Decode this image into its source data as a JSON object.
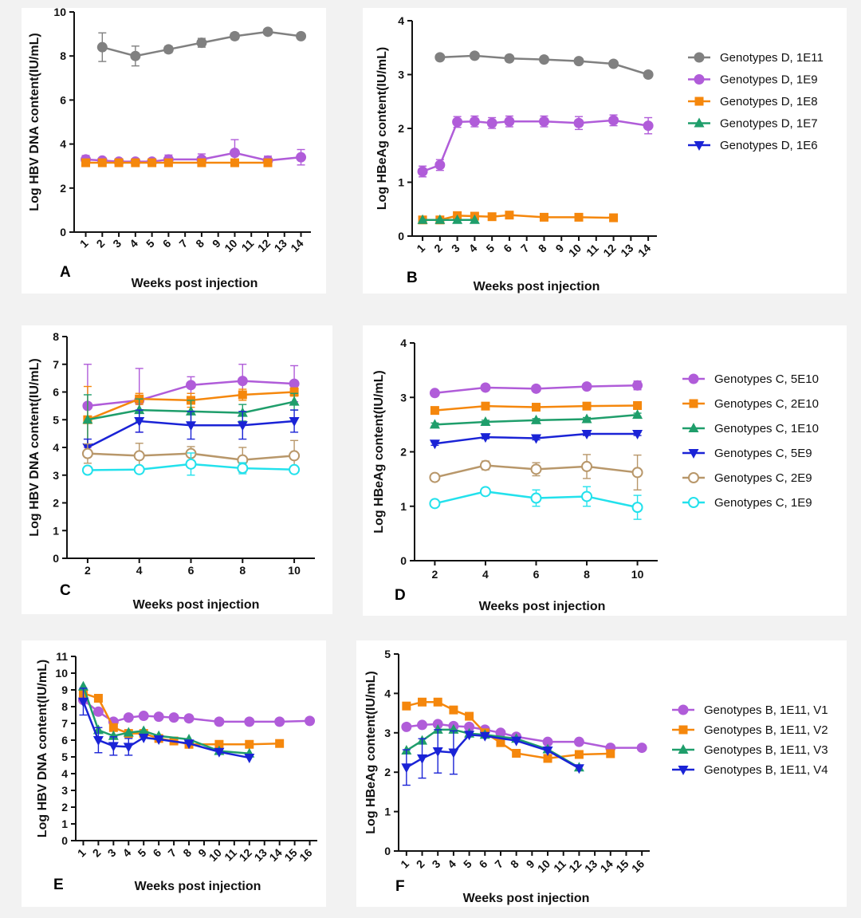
{
  "chart_data": [
    {
      "id": "A",
      "panel_label": "A",
      "type": "line",
      "xlabel": "Weeks post injection",
      "ylabel": "Log HBV DNA content(IU/mL)",
      "x_ticks": [
        1,
        2,
        3,
        4,
        5,
        6,
        7,
        8,
        9,
        10,
        11,
        12,
        13,
        14
      ],
      "y_ticks": [
        0,
        2,
        4,
        6,
        8,
        10
      ],
      "ylim": [
        0,
        10
      ],
      "xlim": [
        0.3,
        14.6
      ],
      "series": [
        {
          "name": "Genotypes D, 1E11",
          "color": "#808080",
          "marker": "circle",
          "x": [
            2,
            4,
            6,
            8,
            10,
            12,
            14
          ],
          "y": [
            8.4,
            8.0,
            8.3,
            8.6,
            8.9,
            9.1,
            8.9
          ],
          "err": [
            0.65,
            0.45,
            0.15,
            0.2,
            0.15,
            0.1,
            0.12
          ]
        },
        {
          "name": "Genotypes D, 1E9",
          "color": "#b05cd9",
          "marker": "circle",
          "x": [
            1,
            2,
            3,
            4,
            5,
            6,
            8,
            10,
            12,
            14
          ],
          "y": [
            3.3,
            3.25,
            3.2,
            3.2,
            3.2,
            3.3,
            3.3,
            3.6,
            3.25,
            3.4
          ],
          "err": [
            0.18,
            0.1,
            0.05,
            0.05,
            0.05,
            0.2,
            0.25,
            0.6,
            0.2,
            0.35
          ]
        },
        {
          "name": "Genotypes D, 1E8",
          "color": "#f5870c",
          "marker": "square",
          "x": [
            1,
            2,
            3,
            4,
            5,
            6,
            8,
            10,
            12
          ],
          "y": [
            3.15,
            3.15,
            3.15,
            3.15,
            3.15,
            3.15,
            3.15,
            3.15,
            3.15
          ],
          "err": [
            0,
            0,
            0,
            0,
            0,
            0,
            0,
            0,
            0
          ]
        }
      ]
    },
    {
      "id": "B",
      "panel_label": "B",
      "type": "line",
      "xlabel": "Weeks post injection",
      "ylabel": "Log HBeAg content(IU/mL)",
      "x_ticks": [
        1,
        2,
        3,
        4,
        5,
        6,
        7,
        8,
        9,
        10,
        11,
        12,
        13,
        14
      ],
      "y_ticks": [
        0,
        1,
        2,
        3,
        4
      ],
      "ylim": [
        0,
        4
      ],
      "xlim": [
        0.4,
        14.5
      ],
      "legend": "right",
      "series": [
        {
          "name": "Genotypes D, 1E11",
          "color": "#808080",
          "marker": "circle",
          "x": [
            2,
            4,
            6,
            8,
            10,
            12,
            14
          ],
          "y": [
            3.32,
            3.35,
            3.3,
            3.28,
            3.25,
            3.2,
            3.0
          ],
          "err": [
            0.03,
            0.05,
            0.03,
            0.03,
            0.03,
            0.03,
            0.03
          ]
        },
        {
          "name": "Genotypes D, 1E9",
          "color": "#b05cd9",
          "marker": "circle",
          "x": [
            1,
            2,
            3,
            4,
            5,
            6,
            8,
            10,
            12,
            14
          ],
          "y": [
            1.2,
            1.32,
            2.12,
            2.13,
            2.1,
            2.13,
            2.13,
            2.1,
            2.15,
            2.05
          ],
          "err": [
            0.1,
            0.1,
            0.1,
            0.1,
            0.1,
            0.1,
            0.1,
            0.12,
            0.1,
            0.15
          ]
        },
        {
          "name": "Genotypes D, 1E8",
          "color": "#f5870c",
          "marker": "square",
          "x": [
            1,
            2,
            3,
            4,
            5,
            6,
            8,
            10,
            12
          ],
          "y": [
            0.3,
            0.3,
            0.38,
            0.37,
            0.36,
            0.39,
            0.35,
            0.35,
            0.34
          ],
          "err": [
            0,
            0,
            0,
            0,
            0,
            0,
            0,
            0,
            0
          ]
        },
        {
          "name": "Genotypes D, 1E7",
          "color": "#1f9e6b",
          "marker": "triangle",
          "x": [
            1,
            2,
            3,
            4
          ],
          "y": [
            0.3,
            0.3,
            0.3,
            0.3
          ],
          "err": [
            0,
            0,
            0,
            0
          ]
        },
        {
          "name": "Genotypes D, 1E6",
          "color": "#1a23d6",
          "marker": "triangle-down",
          "x": [],
          "y": [],
          "err": []
        }
      ]
    },
    {
      "id": "C",
      "panel_label": "C",
      "type": "line",
      "xlabel": "Weeks post injection",
      "ylabel": "Log HBV DNA  content(IU/mL)",
      "x_ticks": [
        2,
        4,
        6,
        8,
        10
      ],
      "y_ticks": [
        0,
        1,
        2,
        3,
        4,
        5,
        6,
        7,
        8
      ],
      "ylim": [
        0,
        8
      ],
      "xlim": [
        1.2,
        10.8
      ],
      "series": [
        {
          "name": "Genotypes C, 5E10",
          "color": "#b05cd9",
          "marker": "circle",
          "x": [
            2,
            4,
            6,
            8,
            10
          ],
          "y": [
            5.5,
            5.7,
            6.25,
            6.4,
            6.3
          ],
          "err": [
            1.5,
            1.15,
            0.3,
            0.6,
            0.65
          ]
        },
        {
          "name": "Genotypes C, 2E10",
          "color": "#f5870c",
          "marker": "square",
          "x": [
            2,
            4,
            6,
            8,
            10
          ],
          "y": [
            5.0,
            5.75,
            5.7,
            5.9,
            6.0
          ],
          "err": [
            1.2,
            0.2,
            0.25,
            0.2,
            0.15
          ]
        },
        {
          "name": "Genotypes C, 1E10",
          "color": "#1f9e6b",
          "marker": "triangle",
          "x": [
            2,
            4,
            6,
            8,
            10
          ],
          "y": [
            5.0,
            5.35,
            5.3,
            5.25,
            5.65
          ],
          "err": [
            0.9,
            0.4,
            0.4,
            0.3,
            0.3
          ]
        },
        {
          "name": "Genotypes C, 5E9",
          "color": "#1a23d6",
          "marker": "triangle-down",
          "x": [
            2,
            4,
            6,
            8,
            10
          ],
          "y": [
            4.0,
            4.95,
            4.8,
            4.8,
            4.95
          ],
          "err": [
            0.3,
            0.4,
            0.5,
            0.5,
            0.4
          ]
        },
        {
          "name": "Genotypes C, 2E9",
          "color": "#b8976a",
          "marker": "circle-open",
          "x": [
            2,
            4,
            6,
            8,
            10
          ],
          "y": [
            3.78,
            3.7,
            3.78,
            3.55,
            3.7
          ],
          "err": [
            0.35,
            0.45,
            0.25,
            0.45,
            0.55
          ]
        },
        {
          "name": "Genotypes C, 1E9",
          "color": "#22e1ec",
          "marker": "circle-open",
          "x": [
            2,
            4,
            6,
            8,
            10
          ],
          "y": [
            3.18,
            3.2,
            3.4,
            3.25,
            3.2
          ],
          "err": [
            0.1,
            0.1,
            0.4,
            0.2,
            0.1
          ]
        }
      ]
    },
    {
      "id": "D",
      "panel_label": "D",
      "type": "line",
      "xlabel": "Weeks post injection",
      "ylabel": "Log HBeAg content(IU/mL)",
      "x_ticks": [
        2,
        4,
        6,
        8,
        10
      ],
      "y_ticks": [
        0,
        1,
        2,
        3,
        4
      ],
      "ylim": [
        0,
        4
      ],
      "xlim": [
        1.2,
        10.8
      ],
      "legend": "right",
      "series": [
        {
          "name": "Genotypes C, 5E10",
          "color": "#b05cd9",
          "marker": "circle",
          "x": [
            2,
            4,
            6,
            8,
            10
          ],
          "y": [
            3.08,
            3.18,
            3.16,
            3.2,
            3.22
          ],
          "err": [
            0.04,
            0.05,
            0.05,
            0.05,
            0.08
          ]
        },
        {
          "name": "Genotypes C, 2E10",
          "color": "#f5870c",
          "marker": "square",
          "x": [
            2,
            4,
            6,
            8,
            10
          ],
          "y": [
            2.76,
            2.84,
            2.82,
            2.84,
            2.85
          ],
          "err": [
            0.04,
            0.04,
            0.04,
            0.04,
            0.04
          ]
        },
        {
          "name": "Genotypes C, 1E10",
          "color": "#1f9e6b",
          "marker": "triangle",
          "x": [
            2,
            4,
            6,
            8,
            10
          ],
          "y": [
            2.5,
            2.55,
            2.58,
            2.6,
            2.68
          ],
          "err": [
            0.03,
            0.03,
            0.03,
            0.03,
            0.03
          ]
        },
        {
          "name": "Genotypes C, 5E9",
          "color": "#1a23d6",
          "marker": "triangle-down",
          "x": [
            2,
            4,
            6,
            8,
            10
          ],
          "y": [
            2.15,
            2.27,
            2.25,
            2.33,
            2.33
          ],
          "err": [
            0.03,
            0.03,
            0.03,
            0.03,
            0.03
          ]
        },
        {
          "name": "Genotypes C, 2E9",
          "color": "#b8976a",
          "marker": "circle-open",
          "x": [
            2,
            4,
            6,
            8,
            10
          ],
          "y": [
            1.53,
            1.75,
            1.68,
            1.73,
            1.62
          ],
          "err": [
            0.05,
            0.08,
            0.12,
            0.22,
            0.32
          ]
        },
        {
          "name": "Genotypes C, 1E9",
          "color": "#22e1ec",
          "marker": "circle-open",
          "x": [
            2,
            4,
            6,
            8,
            10
          ],
          "y": [
            1.05,
            1.27,
            1.15,
            1.18,
            0.98
          ],
          "err": [
            0.05,
            0.06,
            0.15,
            0.18,
            0.22
          ]
        }
      ]
    },
    {
      "id": "E",
      "panel_label": "E",
      "type": "line",
      "xlabel": "Weeks post injection",
      "ylabel": "Log HBV DNA content(IU/mL)",
      "x_ticks": [
        1,
        2,
        3,
        4,
        5,
        6,
        7,
        8,
        9,
        10,
        11,
        12,
        13,
        14,
        15,
        16
      ],
      "y_ticks": [
        0,
        1,
        2,
        3,
        4,
        5,
        6,
        7,
        8,
        9,
        10,
        11
      ],
      "ylim": [
        0,
        11
      ],
      "xlim": [
        0.5,
        16.5
      ],
      "series": [
        {
          "name": "Genotypes B, 1E11, V1",
          "color": "#b05cd9",
          "marker": "circle",
          "x": [
            1,
            2,
            3,
            4,
            5,
            6,
            7,
            8,
            10,
            12,
            14,
            16
          ],
          "y": [
            8.4,
            7.7,
            7.1,
            7.35,
            7.45,
            7.4,
            7.35,
            7.3,
            7.1,
            7.1,
            7.1,
            7.15
          ],
          "err": [
            0,
            0,
            0,
            0,
            0,
            0,
            0,
            0,
            0,
            0,
            0,
            0
          ]
        },
        {
          "name": "Genotypes B, 1E11, V2",
          "color": "#f5870c",
          "marker": "square",
          "x": [
            1,
            2,
            3,
            4,
            5,
            6,
            7,
            8,
            10,
            12,
            14
          ],
          "y": [
            8.8,
            8.5,
            6.75,
            6.4,
            6.4,
            6.1,
            5.95,
            5.75,
            5.75,
            5.75,
            5.8
          ],
          "err": [
            0,
            0,
            0,
            0,
            0,
            0,
            0,
            0,
            0,
            0,
            0
          ]
        },
        {
          "name": "Genotypes B, 1E11, V3",
          "color": "#1f9e6b",
          "marker": "triangle",
          "x": [
            1,
            2,
            3,
            4,
            5,
            6,
            8,
            10,
            12
          ],
          "y": [
            9.2,
            6.6,
            6.25,
            6.45,
            6.55,
            6.25,
            6.05,
            5.35,
            5.2
          ],
          "err": [
            0,
            0,
            0,
            0,
            0,
            0,
            0,
            0,
            0
          ]
        },
        {
          "name": "Genotypes B, 1E11, V4",
          "color": "#1a23d6",
          "marker": "triangle-down",
          "x": [
            1,
            2,
            3,
            4,
            5,
            6,
            8,
            10,
            12
          ],
          "y": [
            8.3,
            6.0,
            5.65,
            5.6,
            6.15,
            6.05,
            5.8,
            5.3,
            4.95
          ],
          "err": [
            0.8,
            0.75,
            0.55,
            0.5,
            0,
            0,
            0,
            0,
            0
          ]
        }
      ]
    },
    {
      "id": "F",
      "panel_label": "F",
      "type": "line",
      "xlabel": "Weeks post injection",
      "ylabel": "Log HBeAg content(IU/mL)",
      "x_ticks": [
        1,
        2,
        3,
        4,
        5,
        6,
        7,
        8,
        9,
        10,
        11,
        12,
        13,
        14,
        15,
        16
      ],
      "y_ticks": [
        0,
        1,
        2,
        3,
        4,
        5
      ],
      "ylim": [
        0,
        5
      ],
      "xlim": [
        0.5,
        16.5
      ],
      "legend": "right",
      "series": [
        {
          "name": "Genotypes B, 1E11, V1",
          "color": "#b05cd9",
          "marker": "circle",
          "x": [
            1,
            2,
            3,
            4,
            5,
            6,
            7,
            8,
            10,
            12,
            14,
            16
          ],
          "y": [
            3.15,
            3.2,
            3.22,
            3.17,
            3.15,
            3.08,
            3.0,
            2.9,
            2.77,
            2.77,
            2.62,
            2.62
          ],
          "err": [
            0,
            0,
            0,
            0,
            0,
            0,
            0,
            0,
            0,
            0,
            0,
            0
          ]
        },
        {
          "name": "Genotypes B, 1E11, V2",
          "color": "#f5870c",
          "marker": "square",
          "x": [
            1,
            2,
            3,
            4,
            5,
            6,
            7,
            8,
            10,
            12,
            14
          ],
          "y": [
            3.68,
            3.78,
            3.78,
            3.58,
            3.42,
            3.0,
            2.75,
            2.48,
            2.35,
            2.45,
            2.47
          ],
          "err": [
            0,
            0,
            0,
            0,
            0,
            0,
            0,
            0,
            0,
            0,
            0
          ]
        },
        {
          "name": "Genotypes B, 1E11, V3",
          "color": "#1f9e6b",
          "marker": "triangle",
          "x": [
            1,
            2,
            3,
            4,
            5,
            6,
            8,
            10,
            12
          ],
          "y": [
            2.55,
            2.8,
            3.08,
            3.08,
            2.98,
            2.95,
            2.85,
            2.58,
            2.12
          ],
          "err": [
            0,
            0,
            0,
            0,
            0,
            0,
            0,
            0,
            0
          ]
        },
        {
          "name": "Genotypes B, 1E11, V4",
          "color": "#1a23d6",
          "marker": "triangle-down",
          "x": [
            1,
            2,
            3,
            4,
            5,
            6,
            8,
            10,
            12
          ],
          "y": [
            2.12,
            2.35,
            2.53,
            2.5,
            2.95,
            2.92,
            2.8,
            2.55,
            2.1
          ],
          "err": [
            0.45,
            0.5,
            0.55,
            0.55,
            0,
            0,
            0,
            0,
            0
          ]
        }
      ]
    }
  ]
}
